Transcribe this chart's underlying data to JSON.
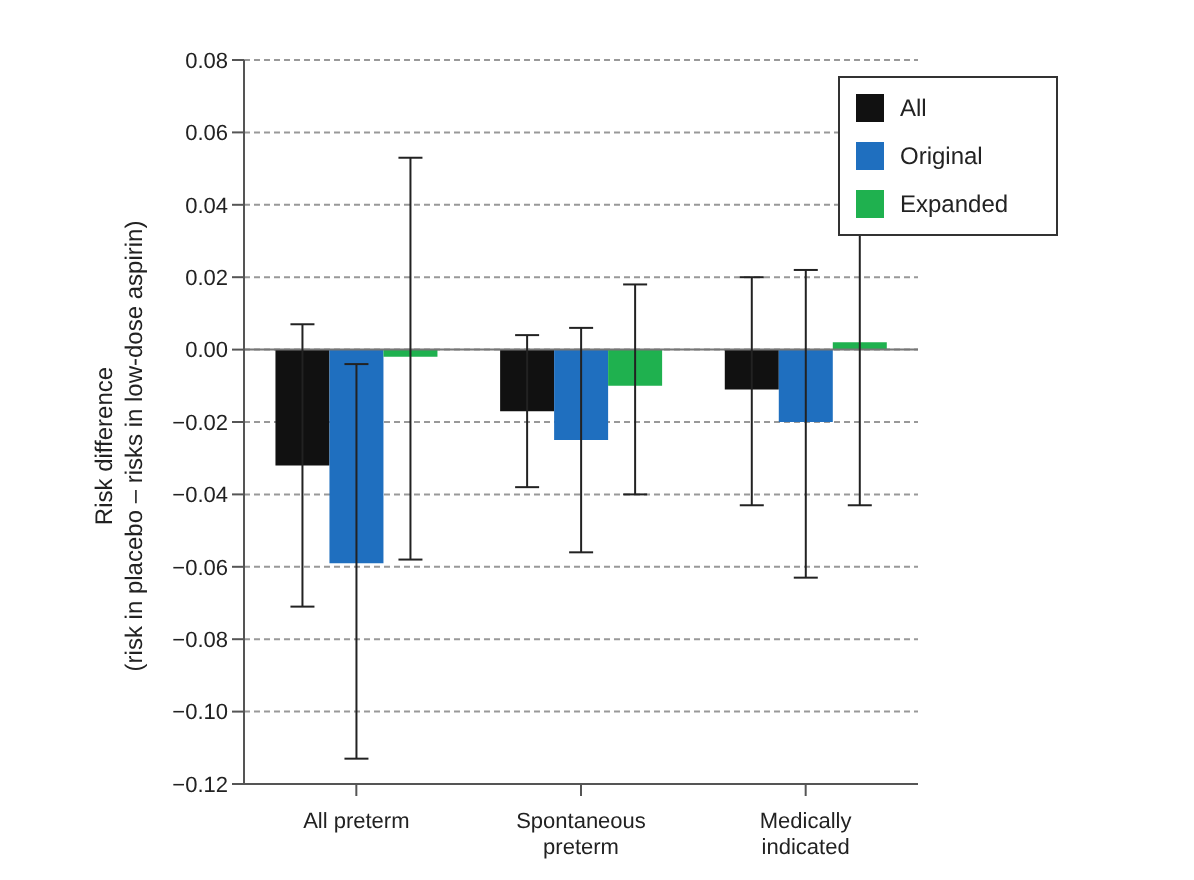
{
  "chart_data": {
    "type": "bar",
    "ylabel": "Risk difference\n(risk in placebo – risks in low-dose aspirin)",
    "categories": [
      "All preterm",
      "Spontaneous preterm",
      "Medically indicated"
    ],
    "series": [
      {
        "name": "All",
        "color": "#111111",
        "values": [
          -0.032,
          -0.017,
          -0.011
        ],
        "errors": [
          [
            -0.071,
            0.007
          ],
          [
            -0.038,
            0.004
          ],
          [
            -0.043,
            0.02
          ]
        ]
      },
      {
        "name": "Original",
        "color": "#1f6fbf",
        "values": [
          -0.059,
          -0.025,
          -0.02
        ],
        "errors": [
          [
            -0.113,
            -0.004
          ],
          [
            -0.056,
            0.006
          ],
          [
            -0.063,
            0.022
          ]
        ]
      },
      {
        "name": "Expanded",
        "color": "#1fb14f",
        "values": [
          -0.002,
          -0.01,
          0.002
        ],
        "errors": [
          [
            -0.058,
            0.053
          ],
          [
            -0.04,
            0.018
          ],
          [
            -0.043,
            0.048
          ]
        ]
      }
    ],
    "ylim": [
      -0.12,
      0.08
    ],
    "yticks": [
      {
        "value": -0.12,
        "label": "−0.12"
      },
      {
        "value": -0.1,
        "label": "−0.10"
      },
      {
        "value": -0.08,
        "label": "−0.08"
      },
      {
        "value": -0.06,
        "label": "−0.06"
      },
      {
        "value": -0.04,
        "label": "−0.04"
      },
      {
        "value": -0.02,
        "label": "−0.02"
      },
      {
        "value": 0,
        "label": "0.00"
      },
      {
        "value": 0.02,
        "label": "0.02"
      },
      {
        "value": 0.04,
        "label": "0.04"
      },
      {
        "value": 0.06,
        "label": "0.06"
      },
      {
        "value": 0.08,
        "label": "0.08"
      }
    ],
    "grid": "y",
    "legend": "top right"
  }
}
